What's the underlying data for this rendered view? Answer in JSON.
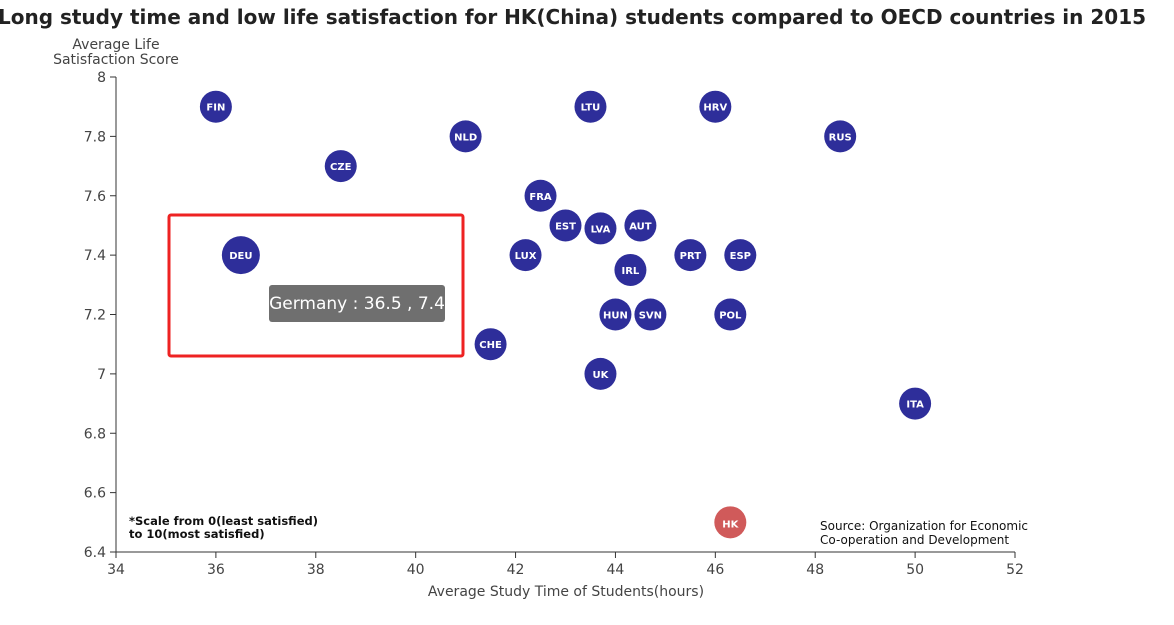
{
  "chart_data": {
    "type": "scatter",
    "title": "Long study time and low life satisfaction for HK(China) students compared to OECD countries in 2015",
    "xlabel": "Average Study Time of Students(hours)",
    "ylabel": [
      "Average Life",
      "Satisfaction Score"
    ],
    "xlim": [
      34,
      52
    ],
    "ylim": [
      6.4,
      8
    ],
    "xticks": [
      34,
      36,
      38,
      40,
      42,
      44,
      46,
      48,
      50,
      52
    ],
    "yticks": [
      6.4,
      6.6,
      6.8,
      7,
      7.2,
      7.4,
      7.6,
      7.8,
      8
    ],
    "ytick_labels": [
      "6.4",
      "6.6",
      "6.8",
      "7",
      "7.2",
      "7.4",
      "7.6",
      "7.8",
      "8"
    ],
    "grid": false,
    "points": [
      {
        "label": "FIN",
        "x": 36,
        "y": 7.9
      },
      {
        "label": "LTU",
        "x": 43.5,
        "y": 7.9
      },
      {
        "label": "HRV",
        "x": 46,
        "y": 7.9
      },
      {
        "label": "NLD",
        "x": 41,
        "y": 7.8
      },
      {
        "label": "RUS",
        "x": 48.5,
        "y": 7.8
      },
      {
        "label": "CZE",
        "x": 38.5,
        "y": 7.7
      },
      {
        "label": "FRA",
        "x": 42.5,
        "y": 7.6
      },
      {
        "label": "EST",
        "x": 43,
        "y": 7.5
      },
      {
        "label": "LVA",
        "x": 43.7,
        "y": 7.49
      },
      {
        "label": "AUT",
        "x": 44.5,
        "y": 7.5
      },
      {
        "label": "DEU",
        "x": 36.5,
        "y": 7.4,
        "highlighted": true
      },
      {
        "label": "LUX",
        "x": 42.2,
        "y": 7.4
      },
      {
        "label": "PRT",
        "x": 45.5,
        "y": 7.4
      },
      {
        "label": "ESP",
        "x": 46.5,
        "y": 7.4
      },
      {
        "label": "IRL",
        "x": 44.3,
        "y": 7.35
      },
      {
        "label": "HUN",
        "x": 44,
        "y": 7.2
      },
      {
        "label": "SVN",
        "x": 44.7,
        "y": 7.2
      },
      {
        "label": "POL",
        "x": 46.3,
        "y": 7.2
      },
      {
        "label": "CHE",
        "x": 41.5,
        "y": 7.1
      },
      {
        "label": "UK",
        "x": 43.7,
        "y": 7.0
      },
      {
        "label": "ITA",
        "x": 50,
        "y": 6.9
      },
      {
        "label": "HK",
        "x": 46.3,
        "y": 6.5,
        "hk": true
      }
    ],
    "colors": {
      "oecd": "#2e2e9a",
      "hk": "#d05a5a",
      "highlight_box": "#ee2222",
      "tooltip_bg": "#6f6f6f"
    },
    "note": [
      "*Scale from 0(least satisfied)",
      "to 10(most satisfied)"
    ],
    "source": [
      "Source: Organization for Economic",
      "Co-operation and Development"
    ],
    "tooltip": "Germany : 36.5 , 7.4"
  }
}
